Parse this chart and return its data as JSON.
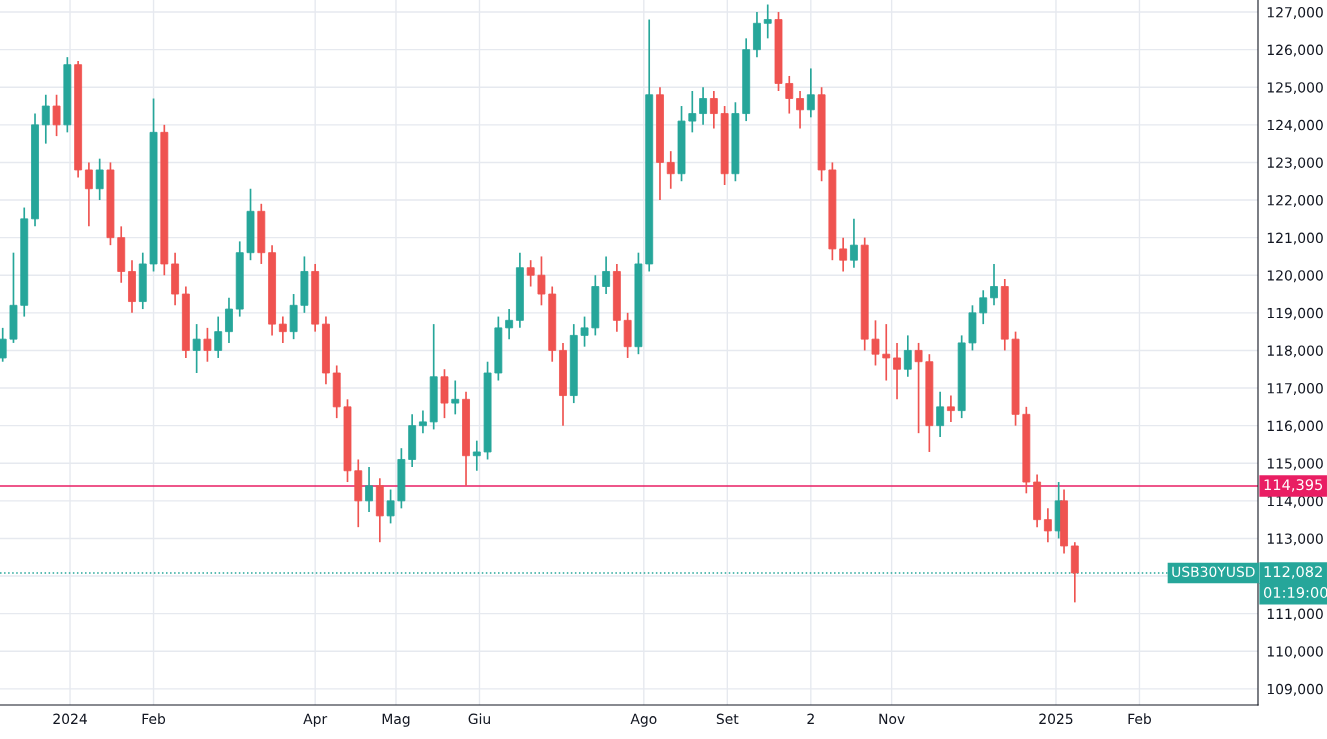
{
  "chart_data": {
    "type": "candlestick",
    "x": [
      "2023-12-07",
      "2023-12-11",
      "2023-12-15",
      "2023-12-19",
      "2023-12-23",
      "2023-12-27",
      "2023-12-31",
      "2024-01-04",
      "2024-01-08",
      "2024-01-12",
      "2024-01-16",
      "2024-01-20",
      "2024-01-24",
      "2024-01-28",
      "2024-02-01",
      "2024-02-05",
      "2024-02-09",
      "2024-02-13",
      "2024-02-17",
      "2024-02-21",
      "2024-02-25",
      "2024-02-29",
      "2024-03-04",
      "2024-03-08",
      "2024-03-12",
      "2024-03-16",
      "2024-03-20",
      "2024-03-24",
      "2024-03-28",
      "2024-04-01",
      "2024-04-05",
      "2024-04-09",
      "2024-04-13",
      "2024-04-17",
      "2024-04-21",
      "2024-04-25",
      "2024-04-29",
      "2024-05-03",
      "2024-05-07",
      "2024-05-11",
      "2024-05-15",
      "2024-05-19",
      "2024-05-23",
      "2024-05-27",
      "2024-05-31",
      "2024-06-04",
      "2024-06-08",
      "2024-06-12",
      "2024-06-16",
      "2024-06-20",
      "2024-06-24",
      "2024-06-28",
      "2024-07-02",
      "2024-07-06",
      "2024-07-10",
      "2024-07-14",
      "2024-07-18",
      "2024-07-22",
      "2024-07-26",
      "2024-07-30",
      "2024-08-03",
      "2024-08-07",
      "2024-08-11",
      "2024-08-15",
      "2024-08-19",
      "2024-08-23",
      "2024-08-27",
      "2024-08-31",
      "2024-09-04",
      "2024-09-08",
      "2024-09-12",
      "2024-09-16",
      "2024-09-20",
      "2024-09-24",
      "2024-09-28",
      "2024-10-02",
      "2024-10-06",
      "2024-10-10",
      "2024-10-14",
      "2024-10-18",
      "2024-10-22",
      "2024-10-26",
      "2024-10-30",
      "2024-11-03",
      "2024-11-07",
      "2024-11-11",
      "2024-11-15",
      "2024-11-19",
      "2024-11-23",
      "2024-11-27",
      "2024-12-01",
      "2024-12-05",
      "2024-12-09",
      "2024-12-13",
      "2024-12-17",
      "2024-12-21",
      "2024-12-25",
      "2024-12-29",
      "2025-01-02",
      "2025-01-04",
      "2025-01-08"
    ],
    "ohlc": [
      [
        117800,
        118600,
        117700,
        118300
      ],
      [
        118300,
        120600,
        118200,
        119200
      ],
      [
        119200,
        121800,
        118900,
        121500
      ],
      [
        121500,
        124300,
        121300,
        124000
      ],
      [
        124000,
        124800,
        123500,
        124500
      ],
      [
        124500,
        124800,
        123700,
        124000
      ],
      [
        124000,
        125800,
        123800,
        125600
      ],
      [
        125600,
        125700,
        122600,
        122800
      ],
      [
        122800,
        123000,
        121300,
        122300
      ],
      [
        122300,
        123100,
        122000,
        122800
      ],
      [
        122800,
        123000,
        120800,
        121000
      ],
      [
        121000,
        121300,
        119800,
        120100
      ],
      [
        120100,
        120400,
        119000,
        119300
      ],
      [
        119300,
        120600,
        119100,
        120300
      ],
      [
        120300,
        124700,
        120100,
        123800
      ],
      [
        123800,
        124000,
        120000,
        120300
      ],
      [
        120300,
        120600,
        119200,
        119500
      ],
      [
        119500,
        119700,
        117800,
        118000
      ],
      [
        118000,
        118700,
        117400,
        118300
      ],
      [
        118300,
        118600,
        117700,
        118000
      ],
      [
        118000,
        118900,
        117800,
        118500
      ],
      [
        118500,
        119400,
        118200,
        119100
      ],
      [
        119100,
        120900,
        118900,
        120600
      ],
      [
        120600,
        122300,
        120400,
        121700
      ],
      [
        121700,
        121900,
        120300,
        120600
      ],
      [
        120600,
        120800,
        118400,
        118700
      ],
      [
        118700,
        118900,
        118200,
        118500
      ],
      [
        118500,
        119500,
        118300,
        119200
      ],
      [
        119200,
        120500,
        119000,
        120100
      ],
      [
        120100,
        120300,
        118500,
        118700
      ],
      [
        118700,
        118900,
        117100,
        117400
      ],
      [
        117400,
        117600,
        116200,
        116500
      ],
      [
        116500,
        116700,
        114500,
        114800
      ],
      [
        114800,
        115100,
        113300,
        114000
      ],
      [
        114000,
        114900,
        113700,
        114400
      ],
      [
        114400,
        114600,
        112900,
        113600
      ],
      [
        113600,
        114300,
        113400,
        114000
      ],
      [
        114000,
        115400,
        113800,
        115100
      ],
      [
        115100,
        116300,
        114900,
        116000
      ],
      [
        116000,
        116400,
        115800,
        116100
      ],
      [
        116100,
        118700,
        115900,
        117300
      ],
      [
        117300,
        117500,
        116200,
        116600
      ],
      [
        116600,
        117200,
        116300,
        116700
      ],
      [
        116700,
        116900,
        114400,
        115200
      ],
      [
        115200,
        115600,
        114800,
        115300
      ],
      [
        115300,
        117700,
        115100,
        117400
      ],
      [
        117400,
        118900,
        117200,
        118600
      ],
      [
        118600,
        119100,
        118300,
        118800
      ],
      [
        118800,
        120600,
        118600,
        120200
      ],
      [
        120200,
        120400,
        119700,
        120000
      ],
      [
        120000,
        120500,
        119200,
        119500
      ],
      [
        119500,
        119700,
        117700,
        118000
      ],
      [
        118000,
        118200,
        116000,
        116800
      ],
      [
        116800,
        118700,
        116600,
        118400
      ],
      [
        118400,
        118900,
        118100,
        118600
      ],
      [
        118600,
        120000,
        118400,
        119700
      ],
      [
        119700,
        120500,
        119500,
        120100
      ],
      [
        120100,
        120300,
        118500,
        118800
      ],
      [
        118800,
        119000,
        117800,
        118100
      ],
      [
        118100,
        120600,
        117900,
        120300
      ],
      [
        120300,
        126800,
        120100,
        124800
      ],
      [
        124800,
        125000,
        122000,
        123000
      ],
      [
        123000,
        123300,
        122300,
        122700
      ],
      [
        122700,
        124500,
        122500,
        124100
      ],
      [
        124100,
        124900,
        123800,
        124300
      ],
      [
        124300,
        125000,
        124000,
        124700
      ],
      [
        124700,
        124900,
        123900,
        124300
      ],
      [
        124300,
        124500,
        122400,
        122700
      ],
      [
        122700,
        124600,
        122500,
        124300
      ],
      [
        124300,
        126300,
        124100,
        126000
      ],
      [
        126000,
        127000,
        125800,
        126700
      ],
      [
        126700,
        127200,
        126300,
        126800
      ],
      [
        126800,
        127000,
        124900,
        125100
      ],
      [
        125100,
        125300,
        124300,
        124700
      ],
      [
        124700,
        124900,
        123900,
        124400
      ],
      [
        124400,
        125500,
        124200,
        124800
      ],
      [
        124800,
        125000,
        122500,
        122800
      ],
      [
        122800,
        123000,
        120400,
        120700
      ],
      [
        120700,
        121000,
        120100,
        120400
      ],
      [
        120400,
        121500,
        120200,
        120800
      ],
      [
        120800,
        121000,
        118000,
        118300
      ],
      [
        118300,
        118800,
        117600,
        117900
      ],
      [
        117900,
        118700,
        117200,
        117800
      ],
      [
        117800,
        118200,
        116700,
        117500
      ],
      [
        117500,
        118400,
        117300,
        118000
      ],
      [
        118000,
        118200,
        115800,
        117700
      ],
      [
        117700,
        117900,
        115300,
        116000
      ],
      [
        116000,
        116900,
        115700,
        116500
      ],
      [
        116500,
        116800,
        116100,
        116400
      ],
      [
        116400,
        118400,
        116200,
        118200
      ],
      [
        118200,
        119200,
        118000,
        119000
      ],
      [
        119000,
        119600,
        118700,
        119400
      ],
      [
        119400,
        120300,
        119200,
        119700
      ],
      [
        119700,
        119900,
        118000,
        118300
      ],
      [
        118300,
        118500,
        116000,
        116300
      ],
      [
        116300,
        116500,
        114200,
        114500
      ],
      [
        114500,
        114700,
        113300,
        113500
      ],
      [
        113500,
        113800,
        112900,
        113200
      ],
      [
        113200,
        114500,
        113000,
        114000
      ],
      [
        114000,
        114300,
        112600,
        112800
      ],
      [
        112800,
        112900,
        111300,
        112082
      ]
    ],
    "colors": [
      "#26a69a",
      "#26a69a",
      "#26a69a",
      "#26a69a",
      "#26a69a",
      "#ef5350",
      "#26a69a",
      "#ef5350",
      "#ef5350",
      "#26a69a",
      "#ef5350",
      "#ef5350",
      "#ef5350",
      "#26a69a",
      "#26a69a",
      "#ef5350",
      "#ef5350",
      "#ef5350",
      "#26a69a",
      "#ef5350",
      "#26a69a",
      "#26a69a",
      "#26a69a",
      "#26a69a",
      "#ef5350",
      "#ef5350",
      "#ef5350",
      "#26a69a",
      "#26a69a",
      "#ef5350",
      "#ef5350",
      "#ef5350",
      "#ef5350",
      "#ef5350",
      "#26a69a",
      "#ef5350",
      "#26a69a",
      "#26a69a",
      "#26a69a",
      "#26a69a",
      "#26a69a",
      "#ef5350",
      "#26a69a",
      "#ef5350",
      "#26a69a",
      "#26a69a",
      "#26a69a",
      "#26a69a",
      "#26a69a",
      "#ef5350",
      "#ef5350",
      "#ef5350",
      "#ef5350",
      "#26a69a",
      "#26a69a",
      "#26a69a",
      "#26a69a",
      "#ef5350",
      "#ef5350",
      "#26a69a",
      "#26a69a",
      "#ef5350",
      "#ef5350",
      "#26a69a",
      "#26a69a",
      "#26a69a",
      "#ef5350",
      "#ef5350",
      "#26a69a",
      "#26a69a",
      "#26a69a",
      "#26a69a",
      "#ef5350",
      "#ef5350",
      "#ef5350",
      "#26a69a",
      "#ef5350",
      "#ef5350",
      "#ef5350",
      "#26a69a",
      "#ef5350",
      "#ef5350",
      "#ef5350",
      "#ef5350",
      "#26a69a",
      "#ef5350",
      "#ef5350",
      "#26a69a",
      "#ef5350",
      "#26a69a",
      "#26a69a",
      "#26a69a",
      "#26a69a",
      "#ef5350",
      "#ef5350",
      "#ef5350",
      "#ef5350",
      "#ef5350",
      "#26a69a",
      "#ef5350",
      "#ef5350"
    ],
    "xlim": [
      "2023-12-06",
      "2025-03-17"
    ],
    "xticks": [
      {
        "value": "2024-01-01",
        "label": "2024"
      },
      {
        "value": "2024-02-01",
        "label": "Feb"
      },
      {
        "value": "2024-04-01",
        "label": "Apr"
      },
      {
        "value": "2024-05-01",
        "label": "Mag"
      },
      {
        "value": "2024-06-01",
        "label": "Giu"
      },
      {
        "value": "2024-08-01",
        "label": "Ago"
      },
      {
        "value": "2024-09-01",
        "label": "Set"
      },
      {
        "value": "2024-10-02",
        "label": "2"
      },
      {
        "value": "2024-11-01",
        "label": "Nov"
      },
      {
        "value": "2025-01-01",
        "label": "2025"
      },
      {
        "value": "2025-02-01",
        "label": "Feb"
      }
    ],
    "ylim": [
      108570,
      127320
    ],
    "yticks": [
      {
        "value": 109000,
        "label": "109,000"
      },
      {
        "value": 110000,
        "label": "110,000"
      },
      {
        "value": 111000,
        "label": "111,000"
      },
      {
        "value": 112000,
        "label": null
      },
      {
        "value": 113000,
        "label": "113,000"
      },
      {
        "value": 114000,
        "label": "114,000"
      },
      {
        "value": 115000,
        "label": "115,000"
      },
      {
        "value": 116000,
        "label": "116,000"
      },
      {
        "value": 117000,
        "label": "117,000"
      },
      {
        "value": 118000,
        "label": "118,000"
      },
      {
        "value": 119000,
        "label": "119,000"
      },
      {
        "value": 120000,
        "label": "120,000"
      },
      {
        "value": 121000,
        "label": "121,000"
      },
      {
        "value": 122000,
        "label": "122,000"
      },
      {
        "value": 123000,
        "label": "123,000"
      },
      {
        "value": 124000,
        "label": "124,000"
      },
      {
        "value": 125000,
        "label": "125,000"
      },
      {
        "value": 126000,
        "label": "126,000"
      },
      {
        "value": 127000,
        "label": "127,000"
      }
    ],
    "grid": true,
    "ref_lines": [
      {
        "axis": "y",
        "value": 114395,
        "label": "114,395",
        "color": "#e91e63",
        "line_style": "solid"
      },
      {
        "axis": "y",
        "value": 112082,
        "label": "112,082",
        "color": "#26a69a",
        "line_style": "dotted"
      }
    ],
    "annotations": [
      "USB30YUSD",
      "01:19:00"
    ]
  }
}
